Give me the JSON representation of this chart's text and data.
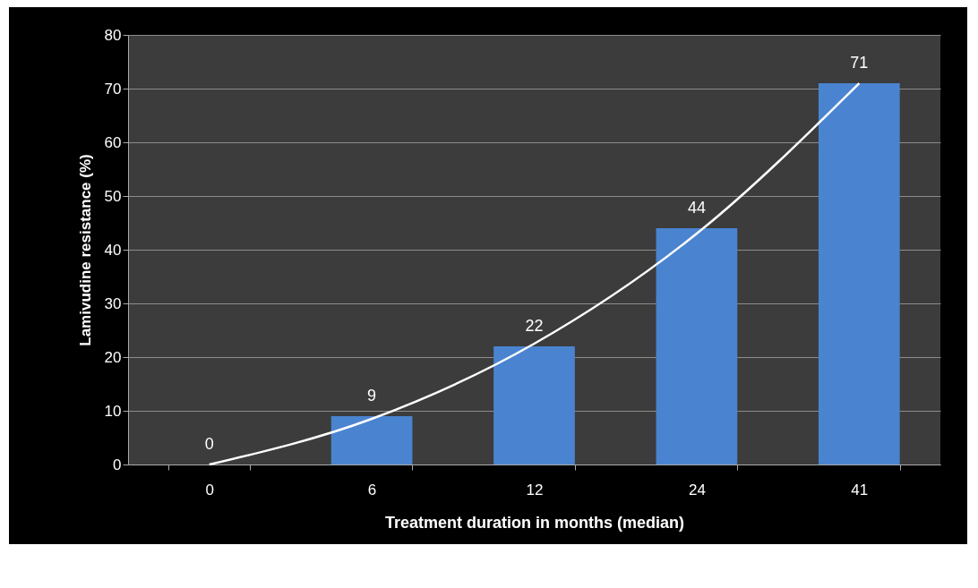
{
  "chart_data": {
    "type": "bar",
    "xlabel": "Treatment duration in months (median)",
    "ylabel": "Lamivudine resistance (%)",
    "categories": [
      "0",
      "6",
      "12",
      "24",
      "41"
    ],
    "series": [
      {
        "color": "#4a84d0",
        "values": [
          0,
          9,
          22,
          44,
          71
        ],
        "value_labels": [
          "0",
          "9",
          "22",
          "44",
          "71"
        ]
      },
      {
        "type": "line",
        "color": "#ffffff",
        "x": [
          "0",
          "6",
          "12",
          "24",
          "41"
        ],
        "values": [
          0,
          8.5,
          22.5,
          43,
          71
        ]
      }
    ],
    "ylim": [
      0,
      80
    ],
    "yticks": [
      0,
      10,
      20,
      30,
      40,
      50,
      60,
      70,
      80
    ],
    "grid": "y"
  }
}
